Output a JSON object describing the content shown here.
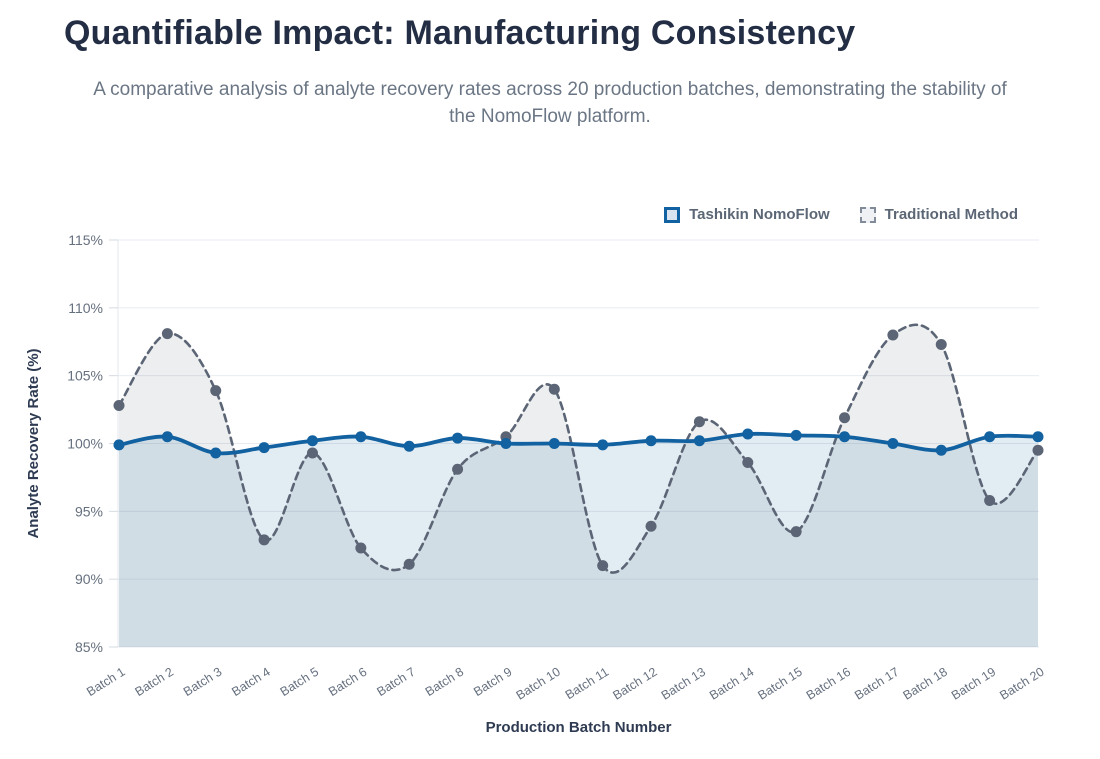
{
  "chart_data": {
    "type": "line",
    "title": "Quantifiable Impact: Manufacturing Consistency",
    "subtitle": "A comparative analysis of analyte recovery rates across 20 production batches, demonstrating the stability of the NomoFlow platform.",
    "xlabel": "Production Batch Number",
    "ylabel": "Analyte Recovery Rate (%)",
    "ylim": [
      85,
      115
    ],
    "yticks": [
      115,
      110,
      105,
      100,
      95,
      90,
      85
    ],
    "ytick_labels": [
      "115%",
      "110%",
      "105%",
      "100%",
      "95%",
      "90%",
      "85%"
    ],
    "categories": [
      "Batch 1",
      "Batch 2",
      "Batch 3",
      "Batch 4",
      "Batch 5",
      "Batch 6",
      "Batch 7",
      "Batch 8",
      "Batch 9",
      "Batch 10",
      "Batch 11",
      "Batch 12",
      "Batch 13",
      "Batch 14",
      "Batch 15",
      "Batch 16",
      "Batch 17",
      "Batch 18",
      "Batch 19",
      "Batch 20"
    ],
    "series": [
      {
        "name": "Tashikin NomoFlow",
        "style": "solid",
        "color": "#1261a0",
        "fill": "rgba(18,97,160,0.12)",
        "values": [
          99.9,
          100.5,
          99.3,
          99.7,
          100.2,
          100.5,
          99.8,
          100.4,
          100.0,
          100.0,
          99.9,
          100.2,
          100.2,
          100.7,
          100.6,
          100.5,
          100.0,
          99.5,
          100.5,
          100.5
        ]
      },
      {
        "name": "Traditional Method",
        "style": "dashed",
        "color": "#5b6575",
        "fill": "rgba(110,120,135,0.13)",
        "values": [
          102.8,
          108.1,
          103.9,
          92.9,
          99.3,
          92.3,
          91.1,
          98.1,
          100.5,
          104.0,
          91.0,
          93.9,
          101.6,
          98.6,
          93.5,
          101.9,
          108.0,
          107.3,
          95.8,
          99.5
        ]
      }
    ],
    "legend": {
      "position": "top-right"
    },
    "grid": true,
    "colors": {
      "title_text": "#232e45",
      "subtitle_text": "#6b7685",
      "axis_title_text": "#2e3b52",
      "tick_text": "#66707f",
      "gridline": "#e8ebf0",
      "axis_line": "#e3e7ed"
    }
  }
}
